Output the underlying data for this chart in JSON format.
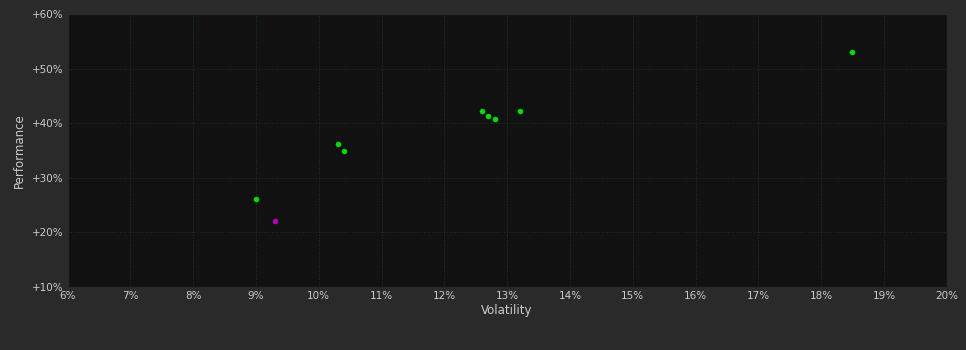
{
  "xlabel": "Volatility",
  "ylabel": "Performance",
  "plot_bg_color": "#111111",
  "outer_bg_color": "#2a2a2a",
  "grid_color": "#1a3a1a",
  "text_color": "#cccccc",
  "xlim": [
    0.06,
    0.2
  ],
  "ylim": [
    0.1,
    0.6
  ],
  "xticks": [
    0.06,
    0.07,
    0.08,
    0.09,
    0.1,
    0.11,
    0.12,
    0.13,
    0.14,
    0.15,
    0.16,
    0.17,
    0.18,
    0.19,
    0.2
  ],
  "yticks": [
    0.1,
    0.2,
    0.3,
    0.4,
    0.5,
    0.6
  ],
  "ytick_labels": [
    "+10%",
    "+20%",
    "+30%",
    "+40%",
    "+50%",
    "+60%"
  ],
  "xtick_labels": [
    "6%",
    "7%",
    "8%",
    "9%",
    "10%",
    "11%",
    "12%",
    "13%",
    "14%",
    "15%",
    "16%",
    "17%",
    "18%",
    "19%",
    "20%"
  ],
  "points_green": [
    [
      0.09,
      0.262
    ],
    [
      0.103,
      0.362
    ],
    [
      0.104,
      0.35
    ],
    [
      0.126,
      0.423
    ],
    [
      0.127,
      0.413
    ],
    [
      0.128,
      0.407
    ],
    [
      0.132,
      0.423
    ],
    [
      0.185,
      0.53
    ]
  ],
  "points_magenta": [
    [
      0.093,
      0.22
    ]
  ],
  "green_color": "#00dd00",
  "magenta_color": "#bb00bb",
  "marker_size": 4
}
